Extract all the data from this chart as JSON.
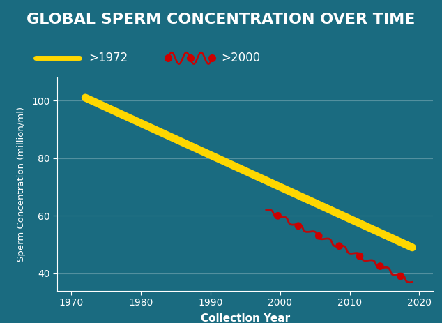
{
  "title": "GLOBAL SPERM CONCENTRATION OVER TIME",
  "title_bg_color": "#8B0000",
  "title_text_color": "#ffffff",
  "bg_color": "#1a6b80",
  "plot_bg_color": "#1a6b80",
  "axis_text_color": "#ffffff",
  "xlabel": "Collection Year",
  "ylabel": "Sperm Concentration (million/ml)",
  "xlim": [
    1968,
    2022
  ],
  "ylim": [
    34,
    108
  ],
  "xticks": [
    1970,
    1980,
    1990,
    2000,
    2010,
    2020
  ],
  "yticks": [
    40,
    60,
    80,
    100
  ],
  "line1_x": [
    1972,
    2019
  ],
  "line1_y": [
    101,
    49
  ],
  "line1_color": "#FFD700",
  "line1_label": ">1972",
  "line1_linewidth": 8,
  "line2_x": [
    1998,
    2019
  ],
  "line2_y": [
    62,
    37
  ],
  "line2_color": "#cc0000",
  "line2_label": ">2000",
  "line2_linewidth": 2.0,
  "grid_color": "#ffffff",
  "grid_alpha": 0.25,
  "marker_color": "#cc0000",
  "wave_amplitude": 0.6,
  "wave_frequency": 20,
  "n_markers": 7
}
